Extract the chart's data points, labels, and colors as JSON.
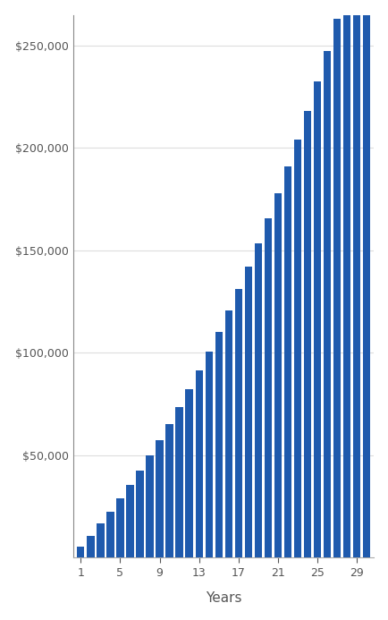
{
  "xlabel": "Years",
  "ylabel": "",
  "bar_color": "#1f5aad",
  "background_color": "#ffffff",
  "years": [
    1,
    2,
    3,
    4,
    5,
    6,
    7,
    8,
    9,
    10,
    11,
    12,
    13,
    14,
    15,
    16,
    17,
    18,
    19,
    20,
    21,
    22,
    23,
    24,
    25,
    26,
    27,
    28,
    29,
    30
  ],
  "values": [
    5250,
    10764,
    16549,
    22613,
    28965,
    35614,
    42568,
    49837,
    57432,
    65362,
    73638,
    82270,
    91270,
    100649,
    110418,
    120590,
    131177,
    142194,
    153654,
    165572,
    177961,
    190836,
    204213,
    218108,
    232537,
    247518,
    263065,
    279197,
    295931,
    313284
  ],
  "yticks": [
    50000,
    100000,
    150000,
    200000,
    250000
  ],
  "xtick_positions": [
    1,
    5,
    9,
    13,
    17,
    21,
    25,
    29
  ],
  "ylim": [
    0,
    265000
  ],
  "figsize": [
    4.35,
    6.93
  ],
  "dpi": 100
}
